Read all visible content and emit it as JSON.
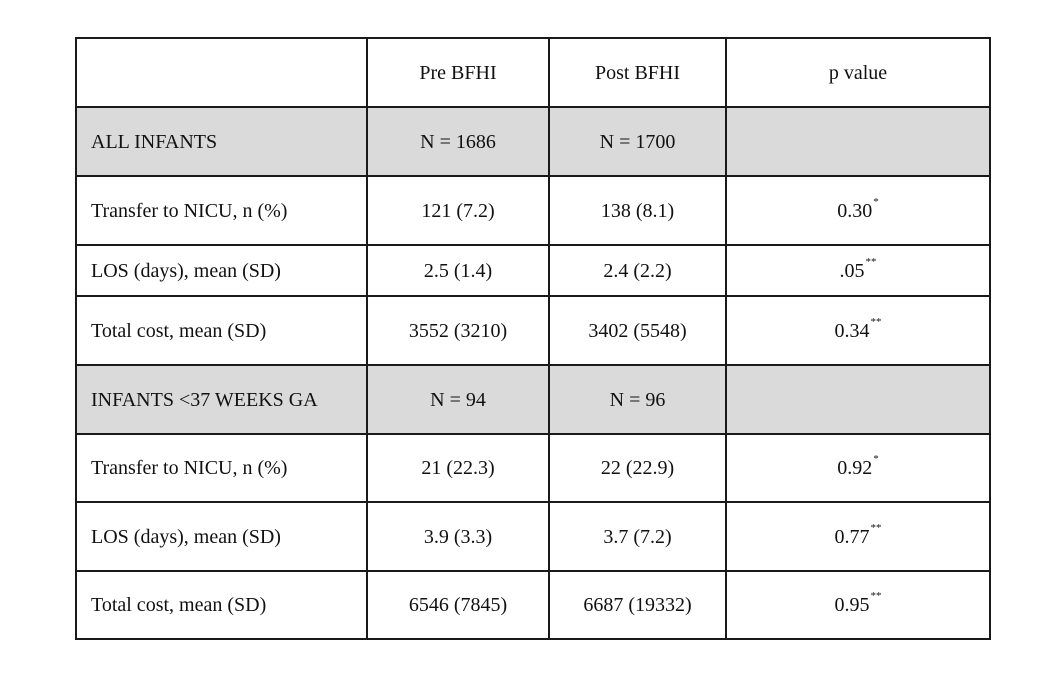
{
  "header": {
    "col1": "",
    "col2": "Pre BFHI",
    "col3": "Post BFHI",
    "col4": "p value"
  },
  "rows": [
    {
      "type": "group",
      "label": "ALL INFANTS",
      "pre": "N = 1686",
      "post": "N = 1700",
      "p": "",
      "p_mark": ""
    },
    {
      "type": "data",
      "label": "Transfer to NICU, n (%)",
      "pre": "121 (7.2)",
      "post": "138 (8.1)",
      "p": "0.30",
      "p_mark": "*"
    },
    {
      "type": "data",
      "label": "LOS (days), mean (SD)",
      "pre": "2.5 (1.4)",
      "post": "2.4 (2.2)",
      "p": ".05",
      "p_mark": "**"
    },
    {
      "type": "data",
      "label": "Total cost, mean (SD)",
      "pre": "3552 (3210)",
      "post": "3402 (5548)",
      "p": "0.34",
      "p_mark": "**"
    },
    {
      "type": "group",
      "label": "INFANTS <37 WEEKS GA",
      "pre": "N = 94",
      "post": "N = 96",
      "p": "",
      "p_mark": ""
    },
    {
      "type": "data",
      "label": "Transfer to NICU, n (%)",
      "pre": "21 (22.3)",
      "post": "22 (22.9)",
      "p": "0.92",
      "p_mark": "*"
    },
    {
      "type": "data",
      "label": "LOS (days), mean (SD)",
      "pre": "3.9 (3.3)",
      "post": "3.7 (7.2)",
      "p": "0.77",
      "p_mark": "**"
    },
    {
      "type": "data",
      "label": "Total cost, mean (SD)",
      "pre": "6546 (7845)",
      "post": "6687 (19332)",
      "p": "0.95",
      "p_mark": "**"
    }
  ],
  "colors": {
    "group_row_bg": "#dadada",
    "border": "#1a1a1a"
  }
}
